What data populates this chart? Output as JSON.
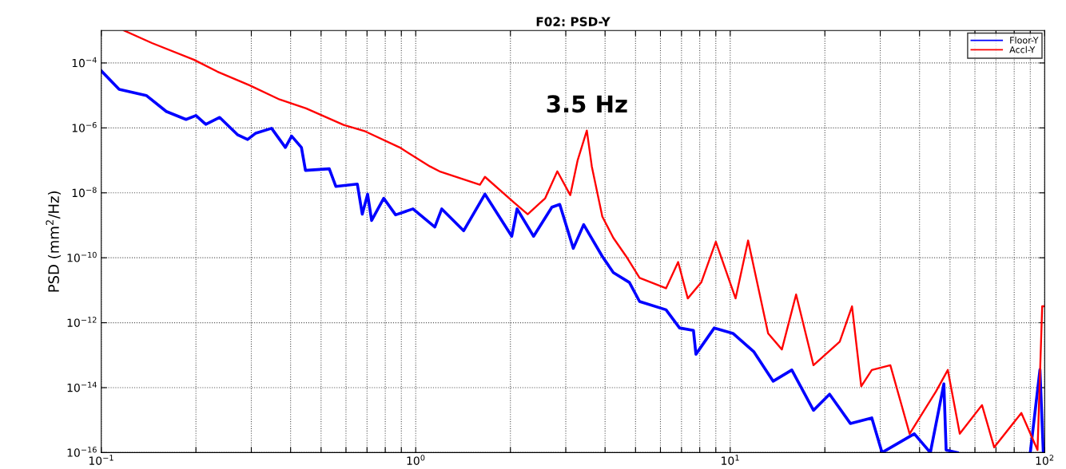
{
  "chart_data": {
    "type": "line",
    "title": "F02: PSD-Y",
    "ylabel": "PSD (mm$^{2}$/Hz)",
    "annotations": [
      {
        "text": "3.5 Hz",
        "x": 3.5,
        "y": 8.3e-07
      }
    ],
    "log": "xy",
    "grid": true,
    "legend": "top right",
    "marker": "none",
    "line_style": "solid",
    "xlim": [
      0.1,
      100
    ],
    "ylim": [
      1e-16,
      0.001
    ],
    "xticks": [
      {
        "value": 0.1,
        "label": "10$^{−1}$"
      },
      {
        "value": 0.2,
        "label": null
      },
      {
        "value": 0.3,
        "label": null
      },
      {
        "value": 0.4,
        "label": null
      },
      {
        "value": 0.5,
        "label": null
      },
      {
        "value": 0.6,
        "label": null
      },
      {
        "value": 0.7,
        "label": null
      },
      {
        "value": 0.8,
        "label": null
      },
      {
        "value": 0.9,
        "label": null
      },
      {
        "value": 1,
        "label": "10$^{0}$"
      },
      {
        "value": 2,
        "label": null
      },
      {
        "value": 3,
        "label": null
      },
      {
        "value": 4,
        "label": null
      },
      {
        "value": 5,
        "label": null
      },
      {
        "value": 6,
        "label": null
      },
      {
        "value": 7,
        "label": null
      },
      {
        "value": 8,
        "label": null
      },
      {
        "value": 9,
        "label": null
      },
      {
        "value": 10,
        "label": "10$^{1}$"
      },
      {
        "value": 20,
        "label": null
      },
      {
        "value": 30,
        "label": null
      },
      {
        "value": 40,
        "label": null
      },
      {
        "value": 50,
        "label": null
      },
      {
        "value": 60,
        "label": null
      },
      {
        "value": 70,
        "label": null
      },
      {
        "value": 80,
        "label": null
      },
      {
        "value": 90,
        "label": null
      },
      {
        "value": 100,
        "label": "10$^{2}$"
      }
    ],
    "yticks": [
      {
        "value": 1e-16,
        "label": "10$^{−16}$"
      },
      {
        "value": 1e-14,
        "label": "10$^{−14}$"
      },
      {
        "value": 1e-12,
        "label": "10$^{−12}$"
      },
      {
        "value": 1e-10,
        "label": "10$^{−10}$"
      },
      {
        "value": 1e-08,
        "label": "10$^{−8}$"
      },
      {
        "value": 1e-06,
        "label": "10$^{−6}$"
      },
      {
        "value": 0.0001,
        "label": "10$^{−4}$"
      }
    ],
    "series": [
      {
        "name": "Floor-Y",
        "color": "#0000ff",
        "x": [
          0.1,
          0.114,
          0.139,
          0.161,
          0.186,
          0.2,
          0.215,
          0.238,
          0.271,
          0.292,
          0.31,
          0.348,
          0.385,
          0.403,
          0.433,
          0.446,
          0.531,
          0.557,
          0.652,
          0.676,
          0.703,
          0.724,
          0.791,
          0.863,
          0.98,
          1.15,
          1.21,
          1.42,
          1.66,
          2.02,
          2.1,
          2.37,
          2.71,
          2.87,
          3.17,
          3.42,
          3.92,
          4.25,
          4.78,
          5.15,
          6.25,
          6.9,
          7.64,
          7.78,
          8.9,
          10.2,
          11.9,
          13.7,
          15.7,
          18.4,
          20.7,
          24.1,
          28.2,
          30.4,
          38.5,
          43.3,
          47.8,
          48.6,
          52.8,
          70,
          90,
          96.6,
          99
        ],
        "values": [
          5.7e-05,
          1.55e-05,
          1e-05,
          3.2e-06,
          1.82e-06,
          2.4e-06,
          1.29e-06,
          2.1e-06,
          6.2e-07,
          4.4e-07,
          6.9e-07,
          9.7e-07,
          2.5e-07,
          5.6e-07,
          2.5e-07,
          4.9e-08,
          5.5e-08,
          1.58e-08,
          1.86e-08,
          2.2e-09,
          9.1e-09,
          1.41e-09,
          6.8e-09,
          2.1e-09,
          3.2e-09,
          8.9e-10,
          3.2e-09,
          6.8e-10,
          9.1e-09,
          4.6e-10,
          3.2e-09,
          4.6e-10,
          3.6e-09,
          4.4e-09,
          1.95e-10,
          1.05e-09,
          1.1e-10,
          3.5e-11,
          1.74e-11,
          4.5e-12,
          2.5e-12,
          6.9e-13,
          5.8e-13,
          1.07e-13,
          6.9e-13,
          4.7e-13,
          1.26e-13,
          1.58e-14,
          3.5e-14,
          2e-15,
          6.3e-15,
          7.9e-16,
          1.17e-15,
          1e-16,
          3.8e-16,
          1e-16,
          1.3e-14,
          1.2e-16,
          1e-16,
          null,
          1e-16,
          3.6e-14,
          1e-16
        ]
      },
      {
        "name": "Accl-Y",
        "color": "#ff0000",
        "x": [
          0.118,
          0.145,
          0.197,
          0.234,
          0.296,
          0.369,
          0.448,
          0.59,
          0.691,
          0.889,
          1.11,
          1.19,
          1.6,
          1.66,
          2.06,
          2.27,
          2.58,
          2.82,
          3.1,
          3.27,
          3.5,
          3.63,
          3.92,
          4.25,
          4.67,
          5.15,
          6.25,
          6.83,
          7.33,
          8.09,
          9.0,
          10.4,
          11.4,
          13.2,
          14.6,
          16.2,
          18.4,
          22.3,
          24.4,
          26.1,
          28.2,
          32.3,
          37.2,
          45.1,
          49.2,
          53.7,
          63.2,
          69.1,
          84.3,
          94.9,
          98.2,
          100
        ],
        "values": [
          0.001,
          0.00041,
          0.000126,
          5.4e-05,
          2.06e-05,
          7.5e-06,
          4e-06,
          1.23e-06,
          7.8e-07,
          2.5e-07,
          6.5e-08,
          4.6e-08,
          1.78e-08,
          3.1e-08,
          4.9e-09,
          2.2e-09,
          6.8e-09,
          4.6e-08,
          8.5e-09,
          9.8e-08,
          8.3e-07,
          6.5e-08,
          1.86e-09,
          4.1e-10,
          1.1e-10,
          2.4e-11,
          1.15e-11,
          7.4e-11,
          5.6e-12,
          1.74e-11,
          3.1e-10,
          5.6e-12,
          3.4e-10,
          4.7e-13,
          1.5e-13,
          7.4e-12,
          4.9e-14,
          2.6e-13,
          3.2e-12,
          1.1e-14,
          3.5e-14,
          4.9e-14,
          3.8e-16,
          7.6e-15,
          3.5e-14,
          3.8e-16,
          2.9e-15,
          1.45e-16,
          1.66e-15,
          1.2e-16,
          3.2e-12,
          3.2e-12
        ]
      }
    ]
  }
}
